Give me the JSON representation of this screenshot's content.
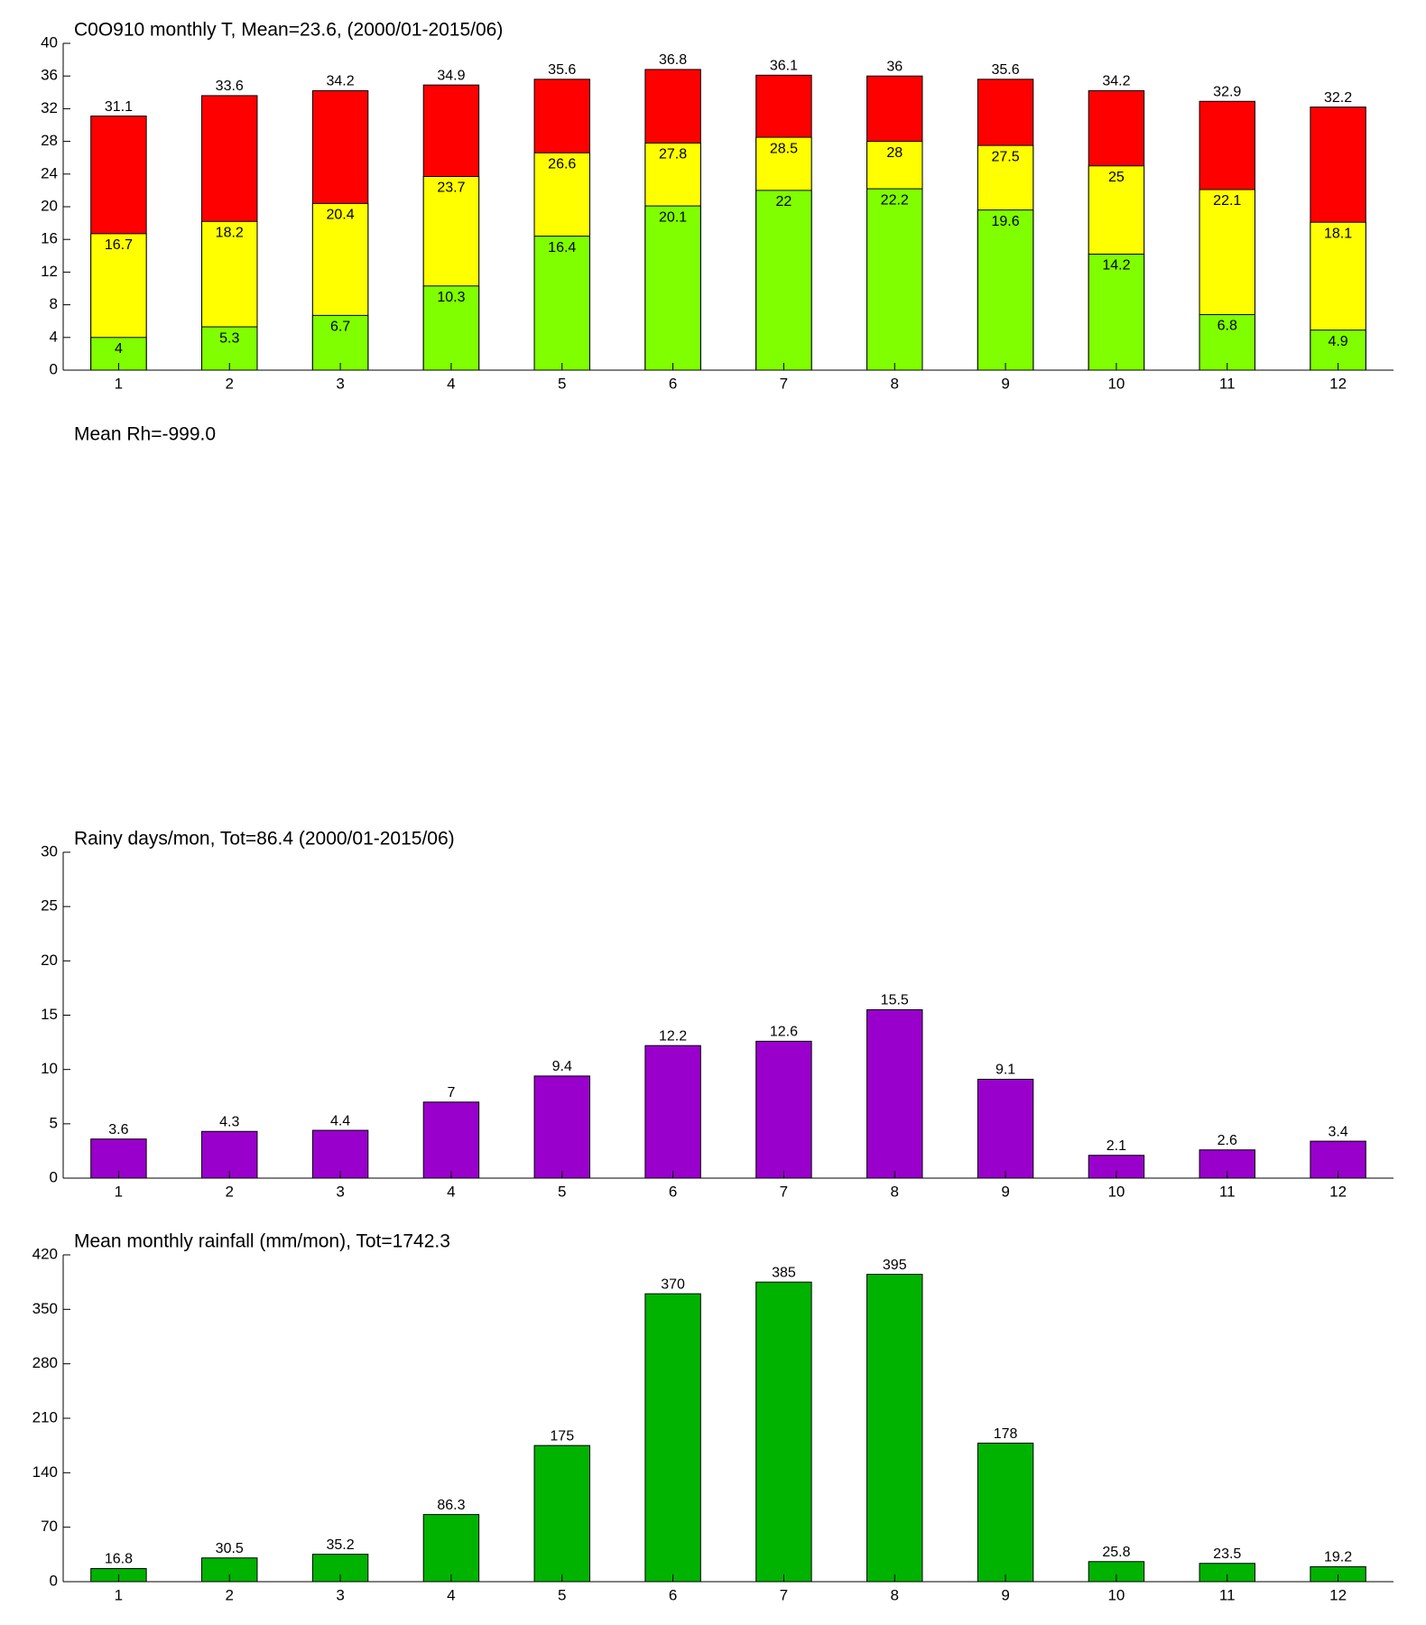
{
  "chart_data": [
    {
      "type": "bar",
      "title": "C0O910 monthly T, Mean=23.6, (2000/01-2015/06)",
      "categories": [
        "1",
        "2",
        "3",
        "4",
        "5",
        "6",
        "7",
        "8",
        "9",
        "10",
        "11",
        "12"
      ],
      "series": [
        {
          "color": "#ff0000",
          "values": [
            31.1,
            33.6,
            34.2,
            34.9,
            35.6,
            36.8,
            36.1,
            36,
            35.6,
            34.2,
            32.9,
            32.2
          ]
        },
        {
          "color": "#ffff00",
          "values": [
            16.7,
            18.2,
            20.4,
            23.7,
            26.6,
            27.8,
            28.5,
            28,
            27.5,
            25,
            22.1,
            18.1
          ]
        },
        {
          "color": "#80ff00",
          "values": [
            4,
            5.3,
            6.7,
            10.3,
            16.4,
            20.1,
            22,
            22.2,
            19.6,
            14.2,
            6.8,
            4.9
          ]
        }
      ],
      "ylim": [
        0,
        40
      ],
      "yticks": [
        0,
        4,
        8,
        12,
        16,
        20,
        24,
        28,
        32,
        36,
        40
      ]
    },
    {
      "type": "empty",
      "title": "Mean Rh=-999.0"
    },
    {
      "type": "bar",
      "title": "Rainy days/mon, Tot=86.4 (2000/01-2015/06)",
      "categories": [
        "1",
        "2",
        "3",
        "4",
        "5",
        "6",
        "7",
        "8",
        "9",
        "10",
        "11",
        "12"
      ],
      "series": [
        {
          "color": "#9900cc",
          "values": [
            3.6,
            4.3,
            4.4,
            7,
            9.4,
            12.2,
            12.6,
            15.5,
            9.1,
            2.1,
            2.6,
            3.4
          ]
        }
      ],
      "ylim": [
        0,
        30
      ],
      "yticks": [
        0,
        5,
        10,
        15,
        20,
        25,
        30
      ]
    },
    {
      "type": "bar",
      "title": "Mean monthly rainfall (mm/mon), Tot=1742.3",
      "categories": [
        "1",
        "2",
        "3",
        "4",
        "5",
        "6",
        "7",
        "8",
        "9",
        "10",
        "11",
        "12"
      ],
      "series": [
        {
          "color": "#00b300",
          "values": [
            16.8,
            30.5,
            35.2,
            86.3,
            175,
            370,
            385,
            395,
            178,
            25.8,
            23.5,
            19.2
          ]
        }
      ],
      "ylim": [
        0,
        420
      ],
      "yticks": [
        0,
        70,
        140,
        210,
        280,
        350,
        420
      ]
    }
  ]
}
